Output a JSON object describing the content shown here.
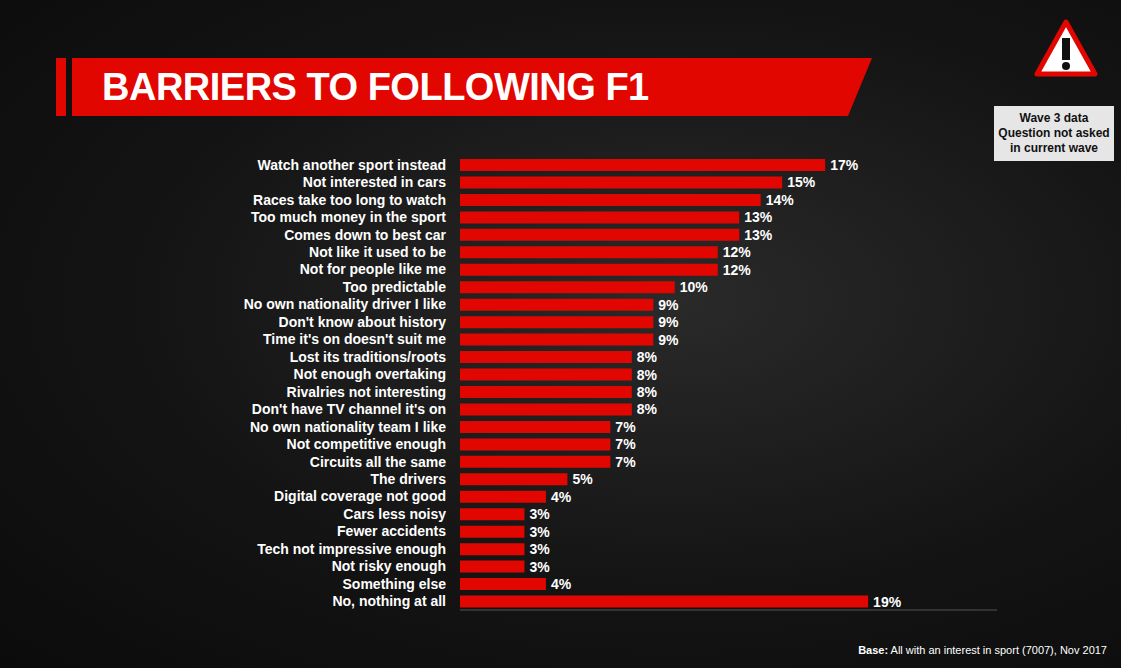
{
  "chart_data": {
    "type": "bar",
    "title": "BARRIERS TO FOLLOWING F1",
    "orientation": "horizontal",
    "categories": [
      "Watch another sport instead",
      "Not interested in cars",
      "Races take too long to watch",
      "Too much money in the sport",
      "Comes down to best car",
      "Not like it used to be",
      "Not for people like me",
      "Too predictable",
      "No own nationality driver I like",
      "Don't know about history",
      "Time it's on doesn't suit me",
      "Lost its traditions/roots",
      "Not enough overtaking",
      "Rivalries not interesting",
      "Don't have TV channel it's on",
      "No own nationality team I like",
      "Not competitive enough",
      "Circuits all the same",
      "The drivers",
      "Digital coverage not good",
      "Cars less noisy",
      "Fewer accidents",
      "Tech not impressive enough",
      "Not risky enough",
      "Something else",
      "No, nothing at all"
    ],
    "values": [
      17,
      15,
      14,
      13,
      13,
      12,
      12,
      10,
      9,
      9,
      9,
      8,
      8,
      8,
      8,
      7,
      7,
      7,
      5,
      4,
      3,
      3,
      3,
      3,
      4,
      19
    ],
    "value_labels": [
      "17%",
      "15%",
      "14%",
      "13%",
      "13%",
      "12%",
      "12%",
      "10%",
      "9%",
      "9%",
      "9%",
      "8%",
      "8%",
      "8%",
      "8%",
      "7%",
      "7%",
      "7%",
      "5%",
      "4%",
      "3%",
      "3%",
      "3%",
      "3%",
      "4%",
      "19%"
    ],
    "color": "#e10600",
    "xlim": [
      0,
      25
    ],
    "data_labels": true,
    "tick_labels": "y",
    "grid": false,
    "annotations": [
      "Wave 3 data Question not asked in current wave",
      "Base: All with an interest in sport (7007), Nov 2017"
    ]
  }
}
